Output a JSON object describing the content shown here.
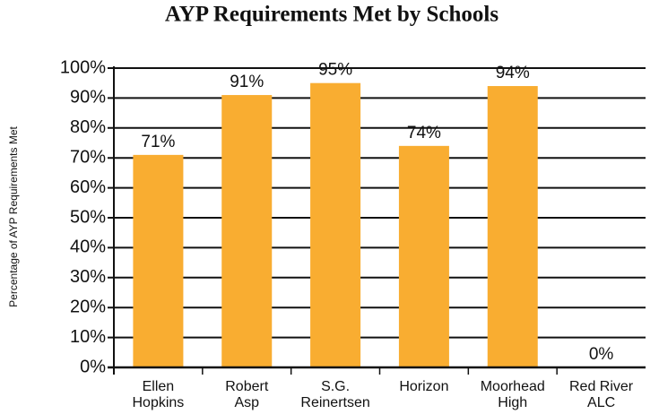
{
  "chart_data": {
    "type": "bar",
    "title": "AYP Requirements Met by Schools",
    "y_label": "Percentage of AYP Requirements Met",
    "categories": [
      "Ellen\nHopkins",
      "Robert\nAsp",
      "S.G.\nReinertsen",
      "Horizon",
      "Moorhead\nHigh",
      "Red River\nALC"
    ],
    "values": [
      71,
      91,
      95,
      74,
      94,
      0
    ],
    "value_labels": [
      "71%",
      "91%",
      "95%",
      "74%",
      "94%",
      "0%"
    ],
    "color": "#f9ad31",
    "ylim": [
      0,
      100
    ],
    "yticks": [
      {
        "value": 0,
        "label": "0%"
      },
      {
        "value": 10,
        "label": "10%"
      },
      {
        "value": 20,
        "label": "20%"
      },
      {
        "value": 30,
        "label": "30%"
      },
      {
        "value": 40,
        "label": "40%"
      },
      {
        "value": 50,
        "label": "50%"
      },
      {
        "value": 60,
        "label": "60%"
      },
      {
        "value": 70,
        "label": "70%"
      },
      {
        "value": 80,
        "label": "80%"
      },
      {
        "value": 90,
        "label": "90%"
      },
      {
        "value": 100,
        "label": "100%"
      }
    ],
    "grid": true
  }
}
